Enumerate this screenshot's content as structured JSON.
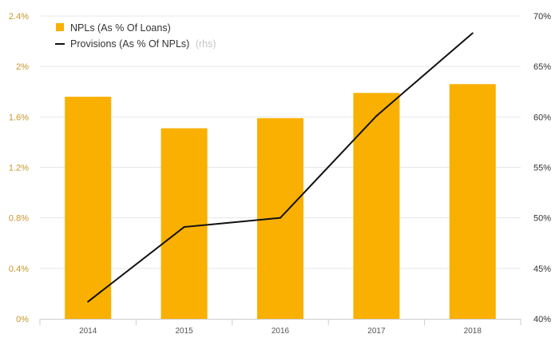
{
  "colors": {
    "bar": "#f9b000",
    "line": "#111111",
    "grid": "#e6e6e6",
    "axis": "#cccccc",
    "left_tick_text": "#c8962a",
    "legend_suffix": "#c6c6c6"
  },
  "legend": {
    "position": "top-left",
    "bar_label": "NPLs (As % Of Loans)",
    "line_label": "Provisions (As % Of NPLs)",
    "line_suffix": "(rhs)"
  },
  "chart_data": {
    "type": "bar",
    "categories": [
      "2014",
      "2015",
      "2016",
      "2017",
      "2018"
    ],
    "series": [
      {
        "name": "NPLs (As % Of Loans)",
        "type": "bar",
        "axis": "left",
        "values": [
          1.76,
          1.51,
          1.59,
          1.79,
          1.86
        ]
      },
      {
        "name": "Provisions (As % Of NPLs) (rhs)",
        "type": "line",
        "axis": "right",
        "values": [
          41.7,
          49.1,
          50.0,
          60.1,
          68.3
        ]
      }
    ],
    "y_left": {
      "lim": [
        0,
        2.4
      ],
      "ticks": [
        0,
        0.4,
        0.8,
        1.2,
        1.6,
        2.0,
        2.4
      ],
      "tick_labels": [
        "0%",
        "0.4%",
        "0.8%",
        "1.2%",
        "1.6%",
        "2%",
        "2.4%"
      ]
    },
    "y_right": {
      "lim": [
        40,
        70
      ],
      "ticks": [
        40,
        45,
        50,
        55,
        60,
        65,
        70
      ],
      "tick_labels": [
        "40%",
        "45%",
        "50%",
        "55%",
        "60%",
        "65%",
        "70%"
      ]
    },
    "grid": true
  }
}
